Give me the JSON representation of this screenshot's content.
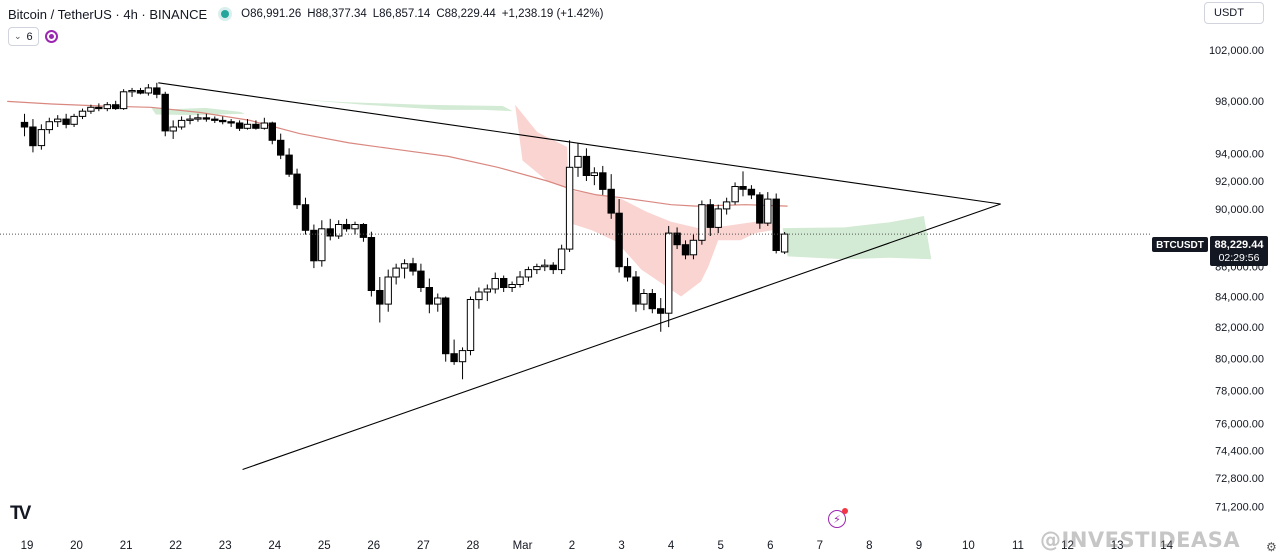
{
  "header": {
    "symbol": "Bitcoin / TetherUS · 4h · BINANCE",
    "open": "O86,991.26",
    "high": "H88,377.34",
    "low": "L86,857.14",
    "close": "C88,229.44",
    "change": "+1,238.19 (+1.42%)",
    "status_color": "#26a69a"
  },
  "indicators": {
    "count": "6"
  },
  "currency": "USDT",
  "price_label": {
    "ticker": "BTCUSDT",
    "price": "88,229.44",
    "countdown": "02:29:56"
  },
  "logo_text": "TV",
  "watermark": "@INVESTIDEASA",
  "icons": {
    "chevron": "chevron-down-icon",
    "sync": "sync-icon",
    "bolt": "bolt-icon",
    "settings": "gear-icon"
  },
  "chart_data": {
    "type": "candlestick",
    "symbol": "BTCUSDT",
    "interval": "4h",
    "price_axis": {
      "ticks": [
        102000,
        98000,
        94000,
        92000,
        90000,
        86000,
        84000,
        82000,
        80000,
        78000,
        76000,
        74400,
        72800,
        71200
      ],
      "tick_labels": [
        "102,000.00",
        "98,000.00",
        "94,000.00",
        "92,000.00",
        "90,000.00",
        "86,000.00",
        "84,000.00",
        "82,000.00",
        "80,000.00",
        "78,000.00",
        "76,000.00",
        "74,400.00",
        "72,800.00",
        "71,200.00"
      ],
      "scale": "log"
    },
    "date_axis": {
      "labels": [
        "19",
        "20",
        "21",
        "22",
        "23",
        "24",
        "25",
        "26",
        "27",
        "28",
        "Mar",
        "2",
        "3",
        "4",
        "5",
        "6",
        "7",
        "8",
        "9",
        "10",
        "11",
        "12",
        "13",
        "14"
      ]
    },
    "last_price": 88229.44,
    "colors": {
      "up": "#ffffff",
      "down": "#000000",
      "wick": "#000000",
      "ma": "#d98880",
      "cloud_bear": "#f7c6c2",
      "cloud_bull": "#c8e6c9",
      "trendline": "#000000"
    },
    "candles": [
      {
        "d": 18.95,
        "o": 96350,
        "h": 97000,
        "l": 95300,
        "c": 96000
      },
      {
        "d": 19.12,
        "o": 96000,
        "h": 96600,
        "l": 94100,
        "c": 94600
      },
      {
        "d": 19.29,
        "o": 94600,
        "h": 96200,
        "l": 94300,
        "c": 95800
      },
      {
        "d": 19.45,
        "o": 95800,
        "h": 96700,
        "l": 95500,
        "c": 96400
      },
      {
        "d": 19.62,
        "o": 96400,
        "h": 96900,
        "l": 96000,
        "c": 96600
      },
      {
        "d": 19.79,
        "o": 96600,
        "h": 97000,
        "l": 95900,
        "c": 96200
      },
      {
        "d": 19.95,
        "o": 96200,
        "h": 97000,
        "l": 96000,
        "c": 96800
      },
      {
        "d": 20.12,
        "o": 96800,
        "h": 97400,
        "l": 96600,
        "c": 97200
      },
      {
        "d": 20.29,
        "o": 97200,
        "h": 97700,
        "l": 97000,
        "c": 97500
      },
      {
        "d": 20.45,
        "o": 97500,
        "h": 97800,
        "l": 97200,
        "c": 97400
      },
      {
        "d": 20.62,
        "o": 97400,
        "h": 97900,
        "l": 97200,
        "c": 97700
      },
      {
        "d": 20.79,
        "o": 97700,
        "h": 98000,
        "l": 97300,
        "c": 97400
      },
      {
        "d": 20.95,
        "o": 97400,
        "h": 98900,
        "l": 97300,
        "c": 98700
      },
      {
        "d": 21.12,
        "o": 98700,
        "h": 99000,
        "l": 98300,
        "c": 98800
      },
      {
        "d": 21.29,
        "o": 98800,
        "h": 99000,
        "l": 98500,
        "c": 98600
      },
      {
        "d": 21.45,
        "o": 98600,
        "h": 99300,
        "l": 98400,
        "c": 99000
      },
      {
        "d": 21.62,
        "o": 99000,
        "h": 99400,
        "l": 98200,
        "c": 98500
      },
      {
        "d": 21.79,
        "o": 98500,
        "h": 98700,
        "l": 95300,
        "c": 95700
      },
      {
        "d": 21.95,
        "o": 95700,
        "h": 96500,
        "l": 95100,
        "c": 96000
      },
      {
        "d": 22.12,
        "o": 96000,
        "h": 96800,
        "l": 95800,
        "c": 96500
      },
      {
        "d": 22.29,
        "o": 96500,
        "h": 96900,
        "l": 96200,
        "c": 96600
      },
      {
        "d": 22.45,
        "o": 96600,
        "h": 97000,
        "l": 96400,
        "c": 96700
      },
      {
        "d": 22.62,
        "o": 96700,
        "h": 97000,
        "l": 96400,
        "c": 96600
      },
      {
        "d": 22.79,
        "o": 96600,
        "h": 96800,
        "l": 96300,
        "c": 96500
      },
      {
        "d": 22.95,
        "o": 96500,
        "h": 96800,
        "l": 96200,
        "c": 96400
      },
      {
        "d": 23.12,
        "o": 96400,
        "h": 96600,
        "l": 96000,
        "c": 96300
      },
      {
        "d": 23.29,
        "o": 96300,
        "h": 96500,
        "l": 95700,
        "c": 95900
      },
      {
        "d": 23.45,
        "o": 95900,
        "h": 96600,
        "l": 95800,
        "c": 96200
      },
      {
        "d": 23.62,
        "o": 96200,
        "h": 96500,
        "l": 95800,
        "c": 95900
      },
      {
        "d": 23.79,
        "o": 95900,
        "h": 96700,
        "l": 95800,
        "c": 96300
      },
      {
        "d": 23.95,
        "o": 96300,
        "h": 96400,
        "l": 94700,
        "c": 95000
      },
      {
        "d": 24.12,
        "o": 95000,
        "h": 95500,
        "l": 93600,
        "c": 93900
      },
      {
        "d": 24.29,
        "o": 93900,
        "h": 94400,
        "l": 92300,
        "c": 92500
      },
      {
        "d": 24.45,
        "o": 92500,
        "h": 92900,
        "l": 90000,
        "c": 90300
      },
      {
        "d": 24.62,
        "o": 90300,
        "h": 90800,
        "l": 88200,
        "c": 88500
      },
      {
        "d": 24.79,
        "o": 88500,
        "h": 88900,
        "l": 85900,
        "c": 86400
      },
      {
        "d": 24.95,
        "o": 86400,
        "h": 89200,
        "l": 86000,
        "c": 88600
      },
      {
        "d": 25.12,
        "o": 88600,
        "h": 89300,
        "l": 87800,
        "c": 88100
      },
      {
        "d": 25.29,
        "o": 88100,
        "h": 89200,
        "l": 87900,
        "c": 88900
      },
      {
        "d": 25.45,
        "o": 88900,
        "h": 89300,
        "l": 88400,
        "c": 88600
      },
      {
        "d": 25.62,
        "o": 88600,
        "h": 89100,
        "l": 88200,
        "c": 88900
      },
      {
        "d": 25.79,
        "o": 88900,
        "h": 89000,
        "l": 87700,
        "c": 88000
      },
      {
        "d": 25.95,
        "o": 88000,
        "h": 88400,
        "l": 84000,
        "c": 84400
      },
      {
        "d": 26.12,
        "o": 84400,
        "h": 85300,
        "l": 82300,
        "c": 83500
      },
      {
        "d": 26.29,
        "o": 83500,
        "h": 85800,
        "l": 83000,
        "c": 85300
      },
      {
        "d": 26.45,
        "o": 85300,
        "h": 86200,
        "l": 84800,
        "c": 85900
      },
      {
        "d": 26.62,
        "o": 85900,
        "h": 86500,
        "l": 85200,
        "c": 86200
      },
      {
        "d": 26.79,
        "o": 86200,
        "h": 86600,
        "l": 85400,
        "c": 85700
      },
      {
        "d": 26.95,
        "o": 85700,
        "h": 86200,
        "l": 84300,
        "c": 84600
      },
      {
        "d": 27.12,
        "o": 84600,
        "h": 85200,
        "l": 82900,
        "c": 83500
      },
      {
        "d": 27.29,
        "o": 83500,
        "h": 84200,
        "l": 83000,
        "c": 83900
      },
      {
        "d": 27.45,
        "o": 83900,
        "h": 84000,
        "l": 79800,
        "c": 80300
      },
      {
        "d": 27.62,
        "o": 80300,
        "h": 81200,
        "l": 79600,
        "c": 79800
      },
      {
        "d": 27.79,
        "o": 79800,
        "h": 80700,
        "l": 78700,
        "c": 80500
      },
      {
        "d": 27.95,
        "o": 80500,
        "h": 84000,
        "l": 80200,
        "c": 83800
      },
      {
        "d": 28.12,
        "o": 83800,
        "h": 84600,
        "l": 83200,
        "c": 84300
      },
      {
        "d": 28.29,
        "o": 84300,
        "h": 84800,
        "l": 83700,
        "c": 84500
      },
      {
        "d": 28.45,
        "o": 84500,
        "h": 85600,
        "l": 84200,
        "c": 85200
      },
      {
        "d": 28.62,
        "o": 85200,
        "h": 85400,
        "l": 84300,
        "c": 84600
      },
      {
        "d": 28.79,
        "o": 84600,
        "h": 85000,
        "l": 84300,
        "c": 84800
      },
      {
        "d": 28.95,
        "o": 84800,
        "h": 85700,
        "l": 84600,
        "c": 85300
      },
      {
        "d": 29.12,
        "o": 85300,
        "h": 86000,
        "l": 85000,
        "c": 85800
      },
      {
        "d": 29.29,
        "o": 85800,
        "h": 86200,
        "l": 85500,
        "c": 86000
      },
      {
        "d": 29.45,
        "o": 86000,
        "h": 86500,
        "l": 85700,
        "c": 86100
      },
      {
        "d": 29.62,
        "o": 86100,
        "h": 86300,
        "l": 85500,
        "c": 85800
      },
      {
        "d": 29.79,
        "o": 85800,
        "h": 87500,
        "l": 85500,
        "c": 87200
      },
      {
        "d": 29.95,
        "o": 87200,
        "h": 95000,
        "l": 87000,
        "c": 93000
      },
      {
        "d": 30.12,
        "o": 93000,
        "h": 94800,
        "l": 92300,
        "c": 93800
      },
      {
        "d": 30.29,
        "o": 93800,
        "h": 94400,
        "l": 92000,
        "c": 92400
      },
      {
        "d": 30.45,
        "o": 92400,
        "h": 93000,
        "l": 91700,
        "c": 92600
      },
      {
        "d": 30.62,
        "o": 92600,
        "h": 93100,
        "l": 91000,
        "c": 91400
      },
      {
        "d": 30.79,
        "o": 91400,
        "h": 92500,
        "l": 89300,
        "c": 89700
      },
      {
        "d": 30.95,
        "o": 89700,
        "h": 90700,
        "l": 85600,
        "c": 86000
      },
      {
        "d": 31.12,
        "o": 86000,
        "h": 86600,
        "l": 85000,
        "c": 85300
      },
      {
        "d": 31.29,
        "o": 85300,
        "h": 85700,
        "l": 83000,
        "c": 83500
      },
      {
        "d": 31.45,
        "o": 83500,
        "h": 84500,
        "l": 83100,
        "c": 84200
      },
      {
        "d": 31.62,
        "o": 84200,
        "h": 84500,
        "l": 82900,
        "c": 83200
      },
      {
        "d": 31.79,
        "o": 83200,
        "h": 83900,
        "l": 81700,
        "c": 82900
      },
      {
        "d": 31.95,
        "o": 82900,
        "h": 88800,
        "l": 82000,
        "c": 88300
      },
      {
        "d": 32.12,
        "o": 88300,
        "h": 88700,
        "l": 87200,
        "c": 87500
      },
      {
        "d": 32.29,
        "o": 87500,
        "h": 87800,
        "l": 86500,
        "c": 86800
      },
      {
        "d": 32.45,
        "o": 86800,
        "h": 88200,
        "l": 86500,
        "c": 87800
      },
      {
        "d": 32.62,
        "o": 87800,
        "h": 90600,
        "l": 87500,
        "c": 90300
      },
      {
        "d": 32.79,
        "o": 90300,
        "h": 90700,
        "l": 88100,
        "c": 88700
      },
      {
        "d": 32.95,
        "o": 88700,
        "h": 90300,
        "l": 88300,
        "c": 90000
      },
      {
        "d": 33.12,
        "o": 90000,
        "h": 90800,
        "l": 89600,
        "c": 90500
      },
      {
        "d": 33.29,
        "o": 90500,
        "h": 91900,
        "l": 90300,
        "c": 91600
      },
      {
        "d": 33.45,
        "o": 91600,
        "h": 92700,
        "l": 90900,
        "c": 91400
      },
      {
        "d": 33.62,
        "o": 91400,
        "h": 91700,
        "l": 90700,
        "c": 91000
      },
      {
        "d": 33.79,
        "o": 91000,
        "h": 91200,
        "l": 88600,
        "c": 89000
      },
      {
        "d": 33.95,
        "o": 89000,
        "h": 91200,
        "l": 88800,
        "c": 90700
      },
      {
        "d": 34.12,
        "o": 90700,
        "h": 91100,
        "l": 86900,
        "c": 87100
      },
      {
        "d": 34.29,
        "o": 86991.26,
        "h": 88377.34,
        "l": 86857.14,
        "c": 88229.44
      }
    ],
    "moving_average": [
      [
        18.6,
        97950
      ],
      [
        19.5,
        97750
      ],
      [
        20.5,
        97600
      ],
      [
        21.5,
        97500
      ],
      [
        22.5,
        97100
      ],
      [
        23.5,
        96500
      ],
      [
        24.5,
        95500
      ],
      [
        25.5,
        94800
      ],
      [
        26.5,
        94300
      ],
      [
        27.5,
        93800
      ],
      [
        28.5,
        93000
      ],
      [
        29.5,
        92000
      ],
      [
        30.0,
        91400
      ],
      [
        30.5,
        91000
      ],
      [
        31.0,
        90800
      ],
      [
        31.5,
        90550
      ],
      [
        32.0,
        90300
      ],
      [
        32.5,
        90200
      ],
      [
        33.0,
        90250
      ],
      [
        33.5,
        90300
      ],
      [
        34.35,
        90200
      ]
    ],
    "cloud_bearish": [
      [
        28.85,
        97700
      ],
      [
        29.3,
        95600
      ],
      [
        29.9,
        94500
      ],
      [
        29.95,
        89000
      ],
      [
        30.4,
        88500
      ],
      [
        30.9,
        87700
      ],
      [
        31.4,
        85800
      ],
      [
        31.8,
        84900
      ],
      [
        32.2,
        84000
      ],
      [
        32.6,
        85000
      ],
      [
        32.75,
        86000
      ],
      [
        32.95,
        87800
      ],
      [
        33.4,
        87800
      ],
      [
        33.7,
        88300
      ],
      [
        34.2,
        88600
      ],
      [
        34.2,
        88900
      ],
      [
        33.7,
        89100
      ],
      [
        33.1,
        88800
      ],
      [
        32.6,
        88600
      ],
      [
        32.0,
        89100
      ],
      [
        31.5,
        89800
      ],
      [
        31.0,
        90700
      ],
      [
        30.4,
        91100
      ],
      [
        30.0,
        91300
      ],
      [
        29.5,
        92000
      ],
      [
        29.0,
        93500
      ]
    ],
    "cloud_bullish": [
      [
        21.5,
        97500
      ],
      [
        21.9,
        97350
      ],
      [
        22.6,
        97450
      ],
      [
        23.3,
        97150
      ],
      [
        23.4,
        97000
      ],
      [
        22.4,
        96900
      ],
      [
        21.6,
        96950
      ],
      [
        24.5,
        98100
      ],
      [
        25.8,
        97700
      ],
      [
        27.4,
        97300
      ],
      [
        28.2,
        97300
      ],
      [
        28.8,
        97200
      ],
      [
        28.6,
        97600
      ],
      [
        27.0,
        97700
      ],
      [
        25.4,
        97900
      ],
      [
        34.25,
        88650
      ],
      [
        35.5,
        88700
      ],
      [
        36.0,
        88900
      ],
      [
        36.4,
        89050
      ],
      [
        37.1,
        89500
      ],
      [
        37.25,
        86500
      ],
      [
        36.4,
        86600
      ],
      [
        35.5,
        86500
      ],
      [
        34.35,
        86700
      ]
    ],
    "trendlines": [
      {
        "name": "upper",
        "from": [
          21.65,
          99400
        ],
        "to": [
          38.65,
          90350
        ]
      },
      {
        "name": "lower",
        "from": [
          23.35,
          73300
        ],
        "to": [
          38.65,
          90350
        ]
      }
    ]
  }
}
